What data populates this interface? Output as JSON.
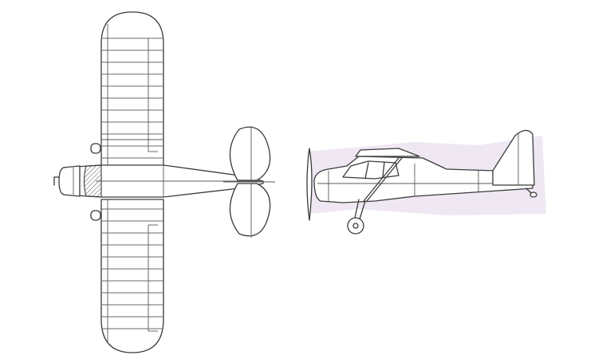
{
  "figure": {
    "views": [
      "top-view",
      "side-view"
    ],
    "line_color": "#3a3a3a",
    "background_color": "#ffffff",
    "smudge_color": "#c9b9d6"
  }
}
